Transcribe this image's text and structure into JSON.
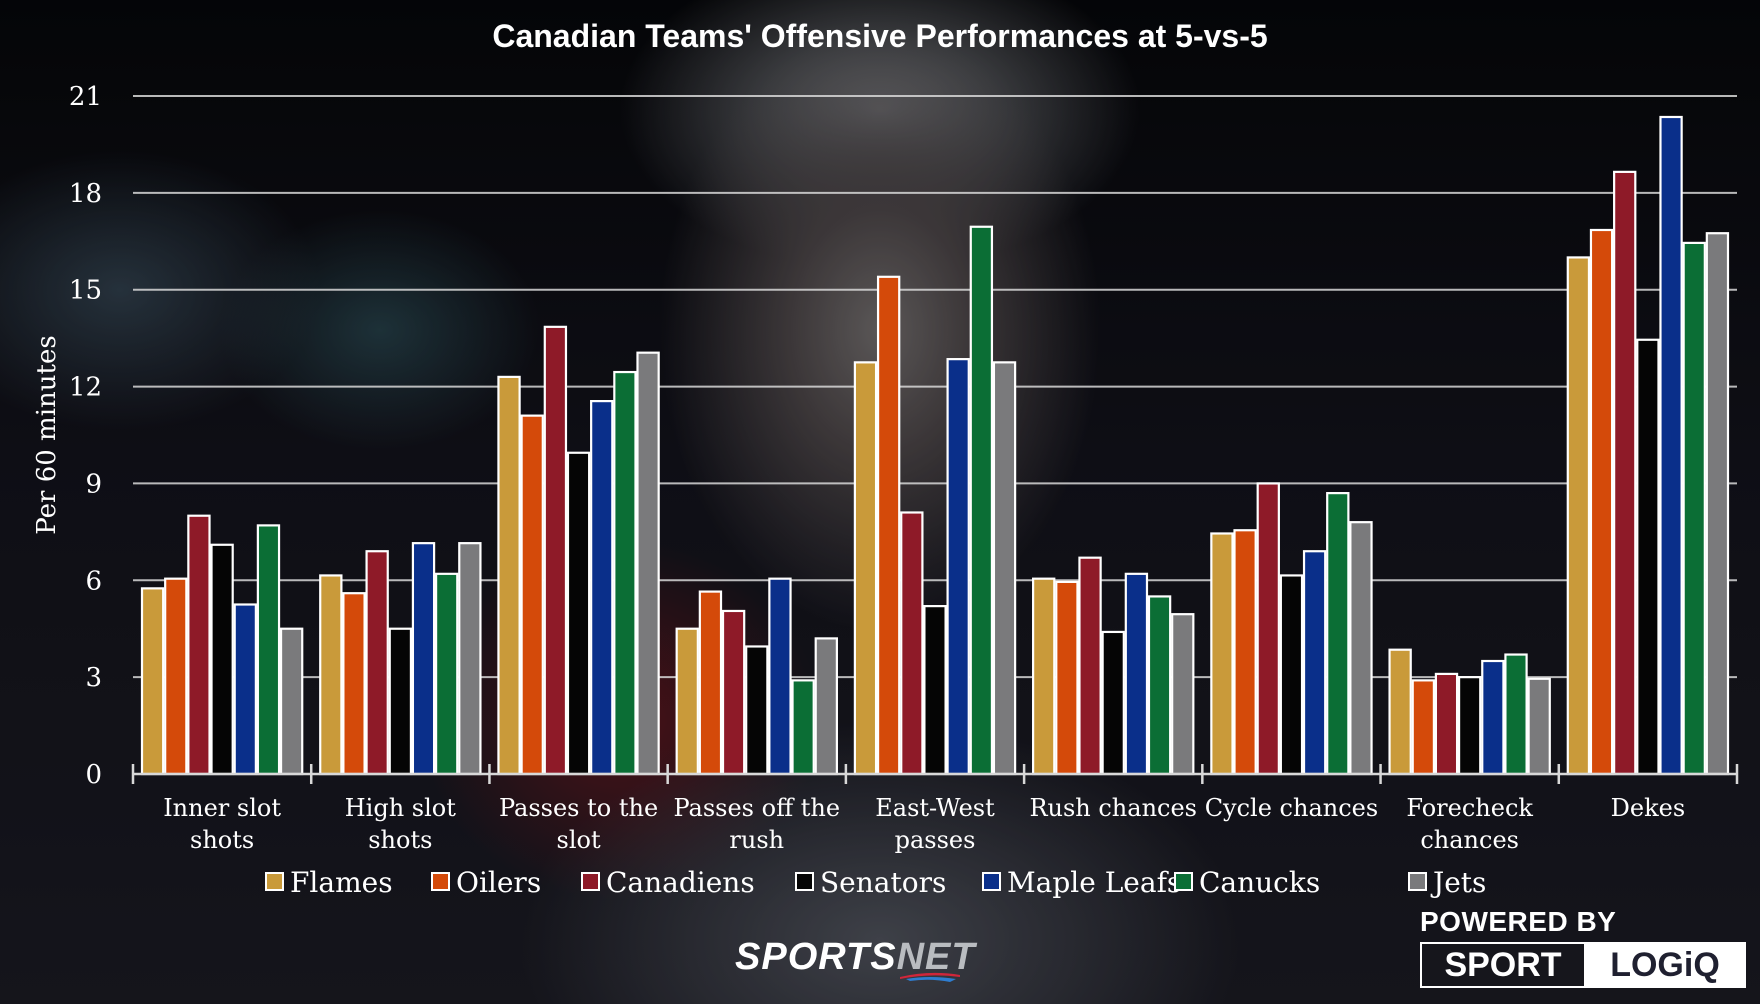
{
  "chart_data": {
    "type": "bar",
    "title": "Canadian Teams' Offensive Performances at 5-vs-5",
    "xlabel": "",
    "ylabel": "Per 60 minutes",
    "ylim": [
      0,
      21
    ],
    "yticks": [
      0,
      3,
      6,
      9,
      12,
      15,
      18,
      21
    ],
    "grid": true,
    "legend_position": "bottom",
    "categories": [
      [
        "Inner slot",
        "shots"
      ],
      [
        "High slot",
        "shots"
      ],
      [
        "Passes to the",
        "slot"
      ],
      [
        "Passes off the",
        "rush"
      ],
      [
        "East-West",
        "passes"
      ],
      [
        "Rush chances"
      ],
      [
        "Cycle chances"
      ],
      [
        "Forecheck",
        "chances"
      ],
      [
        "Dekes"
      ]
    ],
    "series": [
      {
        "name": "Flames",
        "color": "#c99a3a",
        "values": [
          5.75,
          6.15,
          12.3,
          4.5,
          12.75,
          6.05,
          7.45,
          3.85,
          16.0
        ]
      },
      {
        "name": "Oilers",
        "color": "#d44a0a",
        "values": [
          6.05,
          5.6,
          11.1,
          5.65,
          15.4,
          5.95,
          7.55,
          2.9,
          16.85
        ]
      },
      {
        "name": "Canadiens",
        "color": "#8e1a28",
        "values": [
          8.0,
          6.9,
          13.85,
          5.05,
          8.1,
          6.7,
          9.0,
          3.1,
          18.65
        ]
      },
      {
        "name": "Senators",
        "color": "#050505",
        "values": [
          7.1,
          4.5,
          9.95,
          3.95,
          5.2,
          4.4,
          6.15,
          3.0,
          13.45
        ]
      },
      {
        "name": "Maple Leafs",
        "color": "#0a2f8a",
        "values": [
          5.25,
          7.15,
          11.55,
          6.05,
          12.85,
          6.2,
          6.9,
          3.5,
          20.35
        ]
      },
      {
        "name": "Canucks",
        "color": "#0b6e35",
        "values": [
          7.7,
          6.2,
          12.45,
          2.9,
          16.95,
          5.5,
          8.7,
          3.7,
          16.45
        ]
      },
      {
        "name": "Jets",
        "color": "#7a7a7c",
        "values": [
          4.5,
          7.15,
          13.05,
          4.2,
          12.75,
          4.95,
          7.8,
          2.95,
          16.75
        ]
      }
    ]
  },
  "branding": {
    "sportsnet_a": "SPORTS",
    "sportsnet_b": "NET",
    "powered_by": "POWERED BY",
    "sport": "SPORT",
    "logiq": "LOGiQ"
  }
}
